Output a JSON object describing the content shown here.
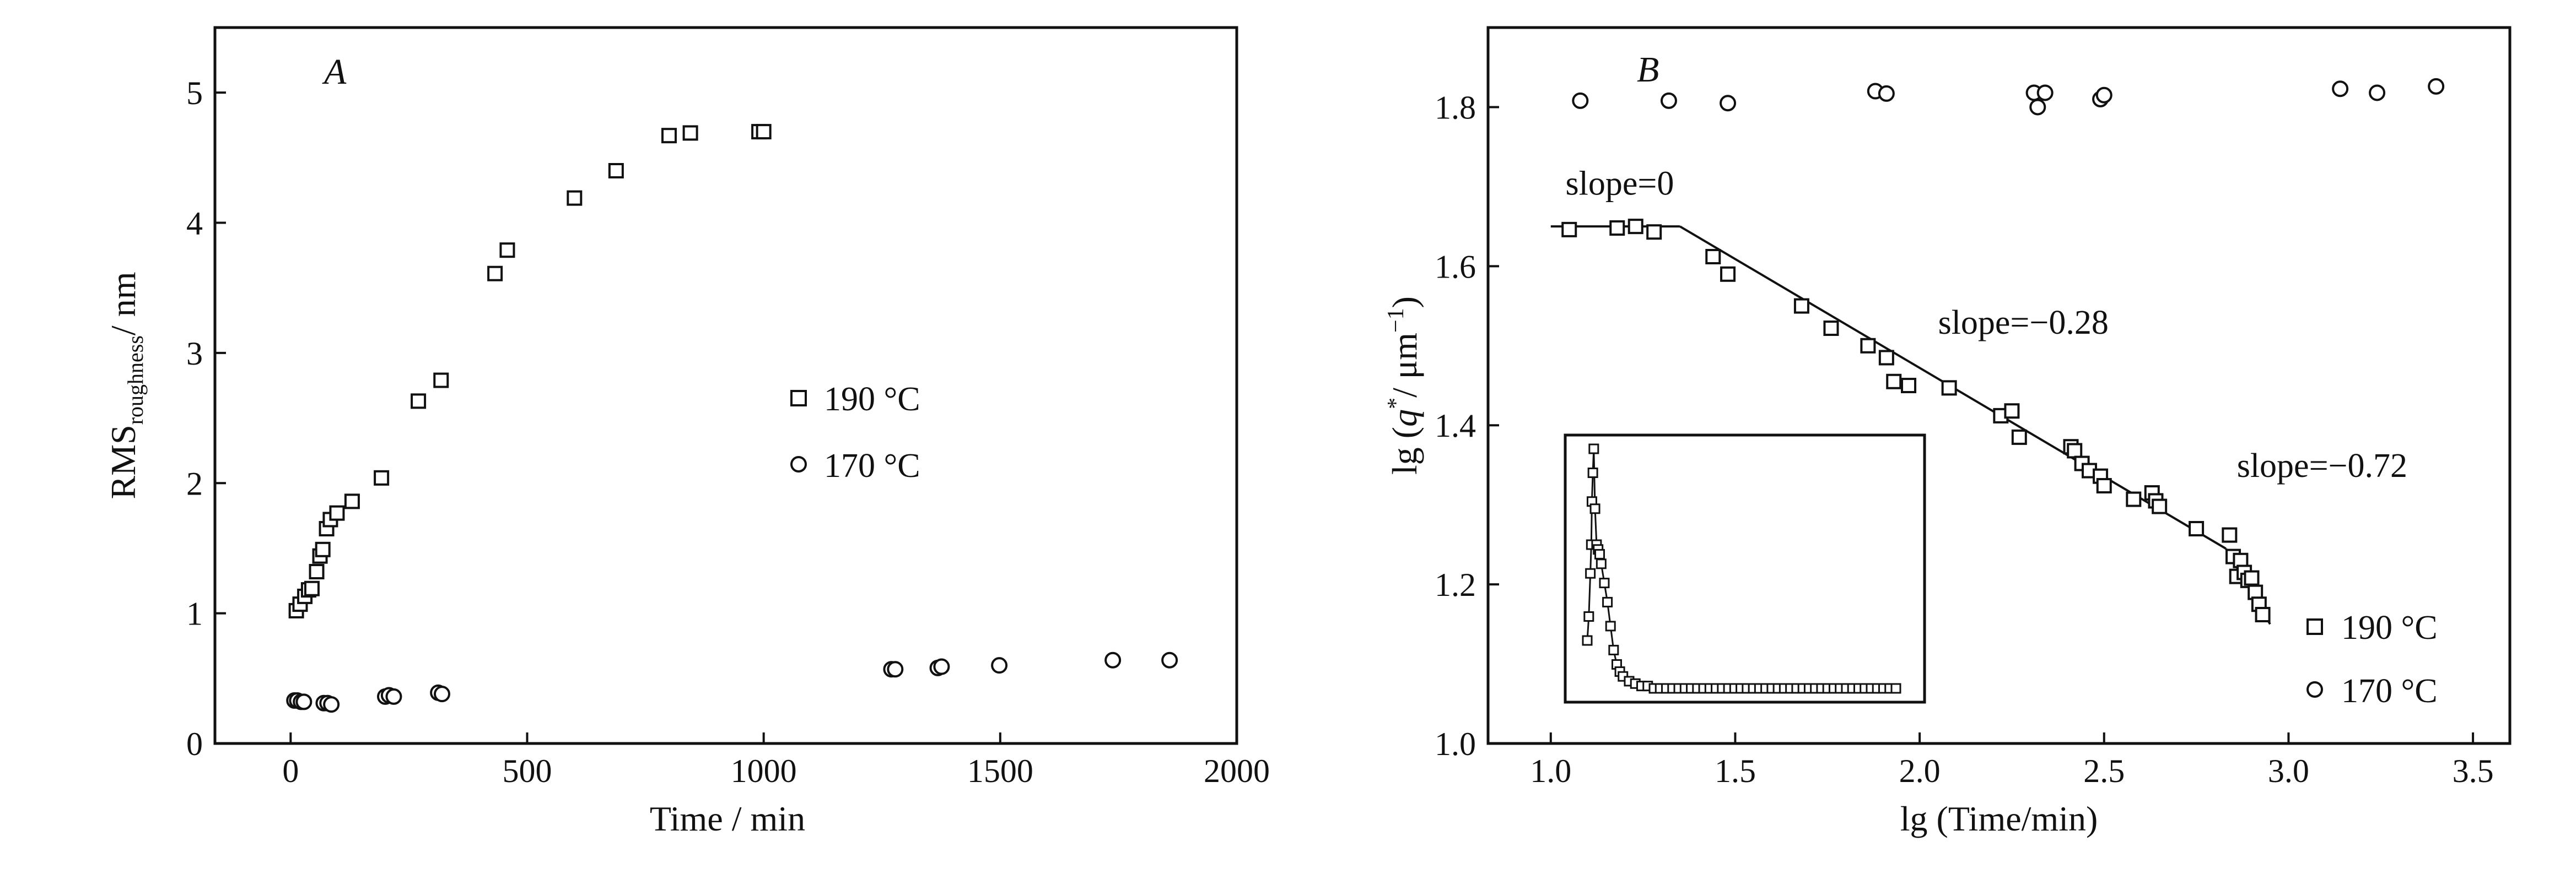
{
  "colors": {
    "ink": "#111111",
    "background": "#ffffff"
  },
  "chart_data": [
    {
      "panel": "A",
      "type": "scatter",
      "xlabel": "Time / min",
      "ylabel_main": "RMS",
      "ylabel_sub": "roughness",
      "ylabel_unit": "/ nm",
      "xlim": [
        -160,
        2000
      ],
      "ylim": [
        0,
        5.5
      ],
      "xticks": [
        "0",
        "500",
        "1000",
        "1500",
        "2000"
      ],
      "xtick_values": [
        0,
        500,
        1000,
        1500,
        2000
      ],
      "yticks": [
        "0",
        "1",
        "2",
        "3",
        "4",
        "5"
      ],
      "ytick_values": [
        0,
        1,
        2,
        3,
        4,
        5
      ],
      "grid": false,
      "legend_position": "center-right",
      "series": [
        {
          "name": "190 °C",
          "marker": "square",
          "x": [
            12,
            20,
            30,
            38,
            45,
            55,
            62,
            68,
            76,
            84,
            98,
            130,
            192,
            270,
            318,
            432,
            458,
            600,
            688,
            800,
            845,
            990,
            1000
          ],
          "y": [
            1.02,
            1.07,
            1.13,
            1.18,
            1.19,
            1.32,
            1.44,
            1.49,
            1.65,
            1.72,
            1.77,
            1.86,
            2.04,
            2.63,
            2.79,
            3.61,
            3.79,
            4.19,
            4.4,
            4.67,
            4.69,
            4.7,
            4.7
          ]
        },
        {
          "name": "170 °C",
          "marker": "circle",
          "x": [
            8,
            14,
            22,
            28,
            70,
            78,
            86,
            200,
            208,
            218,
            312,
            320,
            1270,
            1278,
            1368,
            1376,
            1498,
            1738,
            1858
          ],
          "y": [
            0.33,
            0.33,
            0.32,
            0.32,
            0.31,
            0.31,
            0.3,
            0.36,
            0.37,
            0.36,
            0.39,
            0.38,
            0.57,
            0.57,
            0.58,
            0.59,
            0.6,
            0.64,
            0.64
          ]
        }
      ]
    },
    {
      "panel": "B",
      "type": "scatter",
      "xlabel": "lg (Time/min)",
      "ylabel_prefix": "lg (",
      "ylabel_q": "q",
      "ylabel_star": "*",
      "ylabel_unit": "/ μm",
      "ylabel_exp": "−1",
      "ylabel_close": ")",
      "xlim": [
        0.83,
        3.6
      ],
      "ylim": [
        1.0,
        1.9
      ],
      "xticks": [
        "1.0",
        "1.5",
        "2.0",
        "2.5",
        "3.0",
        "3.5"
      ],
      "xtick_values": [
        1.0,
        1.5,
        2.0,
        2.5,
        3.0,
        3.5
      ],
      "yticks": [
        "1.0",
        "1.2",
        "1.4",
        "1.6",
        "1.8"
      ],
      "ytick_values": [
        1.0,
        1.2,
        1.4,
        1.6,
        1.8
      ],
      "grid": false,
      "legend_position": "bottom-right",
      "series": [
        {
          "name": "190 °C",
          "marker": "square",
          "x": [
            1.05,
            1.18,
            1.23,
            1.28,
            1.44,
            1.48,
            1.68,
            1.76,
            1.86,
            1.91,
            1.93,
            1.97,
            2.08,
            2.22,
            2.25,
            2.27,
            2.41,
            2.42,
            2.44,
            2.46,
            2.49,
            2.5,
            2.58,
            2.63,
            2.64,
            2.65,
            2.75,
            2.84,
            2.85,
            2.86,
            2.87,
            2.88,
            2.89,
            2.9,
            2.91,
            2.92,
            2.93
          ],
          "y": [
            1.646,
            1.648,
            1.65,
            1.643,
            1.612,
            1.59,
            1.55,
            1.522,
            1.5,
            1.485,
            1.455,
            1.45,
            1.447,
            1.412,
            1.418,
            1.385,
            1.373,
            1.368,
            1.352,
            1.343,
            1.336,
            1.324,
            1.307,
            1.315,
            1.305,
            1.298,
            1.27,
            1.262,
            1.235,
            1.21,
            1.23,
            1.215,
            1.205,
            1.208,
            1.19,
            1.175,
            1.162
          ]
        },
        {
          "name": "170 °C",
          "marker": "circle",
          "x": [
            1.08,
            1.32,
            1.48,
            1.88,
            1.91,
            2.31,
            2.32,
            2.34,
            2.49,
            2.5,
            3.14,
            3.24,
            3.4
          ],
          "y": [
            1.808,
            1.808,
            1.805,
            1.82,
            1.817,
            1.818,
            1.8,
            1.818,
            1.81,
            1.815,
            1.823,
            1.818,
            1.826
          ]
        }
      ],
      "fit_lines": [
        {
          "x": [
            1.0,
            1.35
          ],
          "y": [
            1.65,
            1.65
          ]
        },
        {
          "x": [
            1.35,
            2.83
          ],
          "y": [
            1.65,
            1.245
          ]
        },
        {
          "x": [
            2.83,
            2.95
          ],
          "y": [
            1.245,
            1.15
          ]
        }
      ],
      "annotations": [
        {
          "text": "slope=0",
          "x": 1.04,
          "y": 1.69
        },
        {
          "text": "slope=−0.28",
          "x": 2.05,
          "y": 1.515
        },
        {
          "text": "slope=−0.72",
          "x": 2.86,
          "y": 1.335
        }
      ],
      "inset": {
        "type": "line",
        "axes_visible": false,
        "x": [
          0.5,
          1.0,
          1.5,
          1.8,
          2.0,
          2.3,
          2.6,
          3.0,
          3.5,
          4.0,
          4.5,
          5.0,
          6.0,
          7.0,
          8.0,
          9.0,
          10,
          11,
          12,
          14,
          16,
          18,
          20,
          22,
          24,
          26,
          28,
          30,
          32,
          34,
          36,
          38,
          40,
          42,
          44,
          46,
          48,
          50,
          52,
          54,
          56,
          58,
          60,
          62,
          64,
          66,
          68,
          70,
          72,
          74,
          76,
          78,
          80,
          82,
          84,
          86,
          88,
          90,
          92,
          94,
          96,
          98,
          100
        ],
        "y": [
          0.2,
          0.3,
          0.48,
          0.6,
          0.78,
          0.9,
          1.0,
          0.75,
          0.6,
          0.58,
          0.56,
          0.52,
          0.44,
          0.36,
          0.26,
          0.16,
          0.1,
          0.07,
          0.05,
          0.03,
          0.02,
          0.01,
          0.01,
          0.0,
          0.0,
          0.0,
          0.0,
          0.0,
          0.0,
          0.0,
          0.0,
          0.0,
          0.0,
          0.0,
          0.0,
          0.0,
          0.0,
          0.0,
          0.0,
          0.0,
          0.0,
          0.0,
          0.0,
          0.0,
          0.0,
          0.0,
          0.0,
          0.0,
          0.0,
          0.0,
          0.0,
          0.0,
          0.0,
          0.0,
          0.0,
          0.0,
          0.0,
          0.0,
          0.0,
          0.0,
          0.0,
          0.0,
          0.0
        ]
      }
    }
  ]
}
